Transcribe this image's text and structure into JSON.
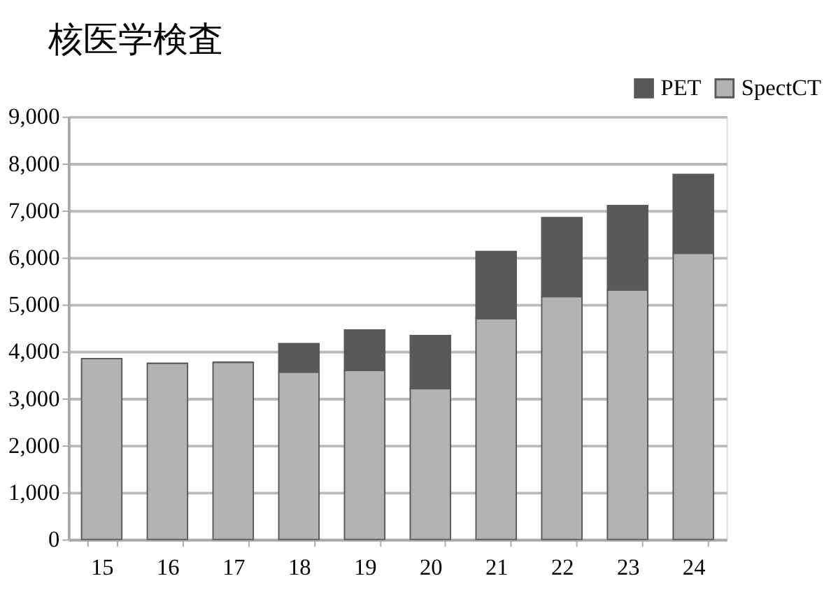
{
  "chart_data": {
    "type": "bar",
    "title": "核医学検査",
    "categories": [
      "15",
      "16",
      "17",
      "18",
      "19",
      "20",
      "21",
      "22",
      "23",
      "24"
    ],
    "stacked": true,
    "series": [
      {
        "name": "SpectCT",
        "color": "#b3b3b3",
        "values": [
          3850,
          3750,
          3770,
          3560,
          3600,
          3210,
          4700,
          5170,
          5310,
          6090
        ]
      },
      {
        "name": "PET",
        "color": "#595959",
        "values": [
          0,
          0,
          0,
          610,
          860,
          1130,
          1430,
          1680,
          1800,
          1680
        ]
      }
    ],
    "ylim": [
      0,
      9000
    ],
    "yticks": [
      {
        "value": 0,
        "label": "0"
      },
      {
        "value": 1000,
        "label": "1,000"
      },
      {
        "value": 2000,
        "label": "2,000"
      },
      {
        "value": 3000,
        "label": "3,000"
      },
      {
        "value": 4000,
        "label": "4,000"
      },
      {
        "value": 5000,
        "label": "5,000"
      },
      {
        "value": 6000,
        "label": "6,000"
      },
      {
        "value": 7000,
        "label": "7,000"
      },
      {
        "value": 8000,
        "label": "8,000"
      },
      {
        "value": 9000,
        "label": "9,000"
      }
    ],
    "grid": "y",
    "legend": "top right"
  }
}
